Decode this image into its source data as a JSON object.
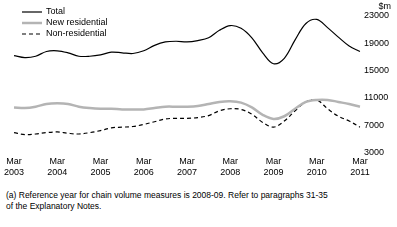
{
  "chart_data": {
    "type": "line",
    "y_label": "$m",
    "annotations": [
      "(a) Reference year for chain volume measures is 2008-09. Refer to paragraphs 31-35",
      "of the Explanatory Notes."
    ],
    "categories": [
      "Mar 2003",
      null,
      null,
      null,
      "Mar 2004",
      null,
      null,
      null,
      "Mar 2005",
      null,
      null,
      null,
      "Mar 2006",
      null,
      null,
      null,
      "Mar 2007",
      null,
      null,
      null,
      "Mar 2008",
      null,
      null,
      null,
      "Mar 2009",
      null,
      null,
      null,
      "Mar 2010",
      null,
      null,
      null,
      "Mar 2011"
    ],
    "series": [
      {
        "name": "Total",
        "color": "#000000",
        "line_style": "solid",
        "values": [
          17200,
          16900,
          17100,
          17800,
          17900,
          17600,
          17100,
          17100,
          17300,
          17700,
          17600,
          17500,
          17900,
          18700,
          19200,
          19300,
          19200,
          19400,
          19800,
          20900,
          21600,
          21200,
          19800,
          17600,
          16000,
          16800,
          19500,
          21900,
          22500,
          21300,
          19900,
          18600,
          17800
        ]
      },
      {
        "name": "New residential",
        "color": "#b4b4b4",
        "line_style": "solid",
        "values": [
          9600,
          9500,
          9700,
          10100,
          10200,
          10100,
          9700,
          9500,
          9400,
          9400,
          9300,
          9300,
          9300,
          9500,
          9700,
          9700,
          9700,
          9800,
          10100,
          10400,
          10500,
          10300,
          9600,
          8500,
          7900,
          8300,
          9400,
          10400,
          10700,
          10700,
          10400,
          10100,
          9700
        ]
      },
      {
        "name": "Non-residential",
        "color": "#000000",
        "line_style": "dashed",
        "values": [
          5900,
          5600,
          5700,
          5900,
          6000,
          5800,
          5700,
          5900,
          6200,
          6600,
          6700,
          6800,
          7100,
          7500,
          7900,
          8000,
          8000,
          8100,
          8400,
          9100,
          9400,
          9300,
          8600,
          7400,
          6700,
          7600,
          9100,
          10400,
          10700,
          9400,
          8300,
          7600,
          6700
        ]
      }
    ],
    "ylim": [
      3000,
      23000
    ],
    "yticks": [
      3000,
      7000,
      11000,
      15000,
      19000,
      23000
    ],
    "grid": false,
    "legend": "upper left"
  }
}
